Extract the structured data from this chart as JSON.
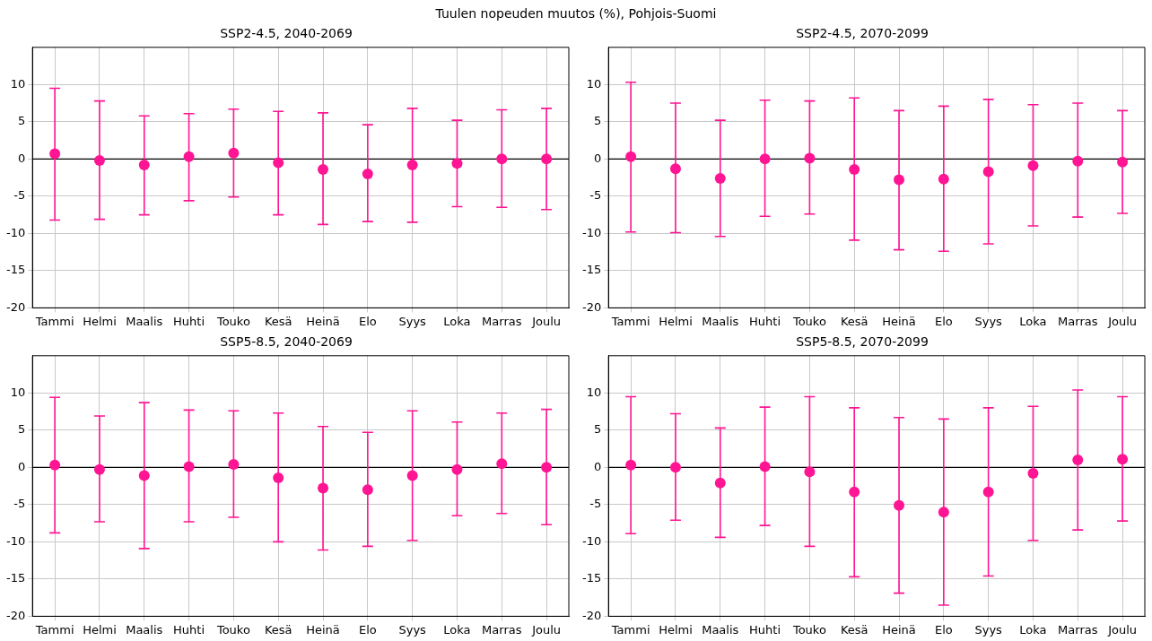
{
  "chart_data": [
    {
      "type": "scatter",
      "title": "SSP2-4.5, 2040-2069",
      "annotations": [
        "Tuulen nopeuden muutos (%), Pohjois-Suomi"
      ],
      "categories": [
        "Tammi",
        "Helmi",
        "Maalis",
        "Huhti",
        "Touko",
        "Kesä",
        "Heinä",
        "Elo",
        "Syys",
        "Loka",
        "Marras",
        "Joulu"
      ],
      "values": [
        0.7,
        -0.2,
        -0.8,
        0.3,
        0.8,
        -0.5,
        -1.4,
        -2.0,
        -0.8,
        -0.6,
        0.0,
        0.0
      ],
      "errors": [
        [
          -8.2,
          9.5
        ],
        [
          -8.1,
          7.8
        ],
        [
          -7.5,
          5.8
        ],
        [
          -5.6,
          6.1
        ],
        [
          -5.1,
          6.7
        ],
        [
          -7.5,
          6.4
        ],
        [
          -8.8,
          6.2
        ],
        [
          -8.4,
          4.6
        ],
        [
          -8.5,
          6.8
        ],
        [
          -6.4,
          5.2
        ],
        [
          -6.5,
          6.6
        ],
        [
          -6.8,
          6.8
        ]
      ],
      "color": "#ff1493",
      "marker": "circle",
      "ylim": [
        -20,
        15
      ],
      "yticks": [
        -20,
        -15,
        -10,
        -5,
        0,
        5,
        10
      ],
      "grid": true,
      "ref_lines": [
        {
          "axis": "y",
          "value": 0,
          "color": "#000000"
        }
      ]
    },
    {
      "type": "scatter",
      "title": "SSP2-4.5, 2070-2099",
      "categories": [
        "Tammi",
        "Helmi",
        "Maalis",
        "Huhti",
        "Touko",
        "Kesä",
        "Heinä",
        "Elo",
        "Syys",
        "Loka",
        "Marras",
        "Joulu"
      ],
      "values": [
        0.3,
        -1.3,
        -2.6,
        0.0,
        0.1,
        -1.4,
        -2.8,
        -2.7,
        -1.7,
        -0.9,
        -0.3,
        -0.4
      ],
      "errors": [
        [
          -9.8,
          10.3
        ],
        [
          -9.9,
          7.5
        ],
        [
          -10.4,
          5.2
        ],
        [
          -7.7,
          7.9
        ],
        [
          -7.4,
          7.8
        ],
        [
          -10.9,
          8.2
        ],
        [
          -12.2,
          6.5
        ],
        [
          -12.4,
          7.1
        ],
        [
          -11.4,
          8.0
        ],
        [
          -9.0,
          7.3
        ],
        [
          -7.8,
          7.5
        ],
        [
          -7.3,
          6.5
        ]
      ],
      "color": "#ff1493",
      "marker": "circle",
      "ylim": [
        -20,
        15
      ],
      "yticks": [
        -20,
        -15,
        -10,
        -5,
        0,
        5,
        10
      ],
      "grid": true,
      "ref_lines": [
        {
          "axis": "y",
          "value": 0,
          "color": "#000000"
        }
      ]
    },
    {
      "type": "scatter",
      "title": "SSP5-8.5, 2040-2069",
      "categories": [
        "Tammi",
        "Helmi",
        "Maalis",
        "Huhti",
        "Touko",
        "Kesä",
        "Heinä",
        "Elo",
        "Syys",
        "Loka",
        "Marras",
        "Joulu"
      ],
      "values": [
        0.3,
        -0.3,
        -1.1,
        0.1,
        0.4,
        -1.4,
        -2.8,
        -3.0,
        -1.1,
        -0.3,
        0.5,
        0.0
      ],
      "errors": [
        [
          -8.8,
          9.4
        ],
        [
          -7.3,
          6.9
        ],
        [
          -10.9,
          8.7
        ],
        [
          -7.3,
          7.7
        ],
        [
          -6.7,
          7.6
        ],
        [
          -10.0,
          7.3
        ],
        [
          -11.1,
          5.5
        ],
        [
          -10.6,
          4.7
        ],
        [
          -9.8,
          7.6
        ],
        [
          -6.5,
          6.1
        ],
        [
          -6.2,
          7.3
        ],
        [
          -7.7,
          7.8
        ]
      ],
      "color": "#ff1493",
      "marker": "circle",
      "ylim": [
        -20,
        15
      ],
      "yticks": [
        -20,
        -15,
        -10,
        -5,
        0,
        5,
        10
      ],
      "grid": true,
      "ref_lines": [
        {
          "axis": "y",
          "value": 0,
          "color": "#000000"
        }
      ]
    },
    {
      "type": "scatter",
      "title": "SSP5-8.5, 2070-2099",
      "categories": [
        "Tammi",
        "Helmi",
        "Maalis",
        "Huhti",
        "Touko",
        "Kesä",
        "Heinä",
        "Elo",
        "Syys",
        "Loka",
        "Marras",
        "Joulu"
      ],
      "values": [
        0.3,
        0.0,
        -2.1,
        0.1,
        -0.6,
        -3.3,
        -5.1,
        -6.0,
        -3.3,
        -0.8,
        1.0,
        1.1
      ],
      "errors": [
        [
          -8.9,
          9.5
        ],
        [
          -7.1,
          7.2
        ],
        [
          -9.4,
          5.3
        ],
        [
          -7.8,
          8.1
        ],
        [
          -10.6,
          9.5
        ],
        [
          -14.7,
          8.0
        ],
        [
          -16.9,
          6.7
        ],
        [
          -18.5,
          6.5
        ],
        [
          -14.6,
          8.0
        ],
        [
          -9.8,
          8.2
        ],
        [
          -8.4,
          10.4
        ],
        [
          -7.2,
          9.5
        ]
      ],
      "color": "#ff1493",
      "marker": "circle",
      "ylim": [
        -20,
        15
      ],
      "yticks": [
        -20,
        -15,
        -10,
        -5,
        0,
        5,
        10
      ],
      "grid": true,
      "ref_lines": [
        {
          "axis": "y",
          "value": 0,
          "color": "#000000"
        }
      ]
    }
  ]
}
